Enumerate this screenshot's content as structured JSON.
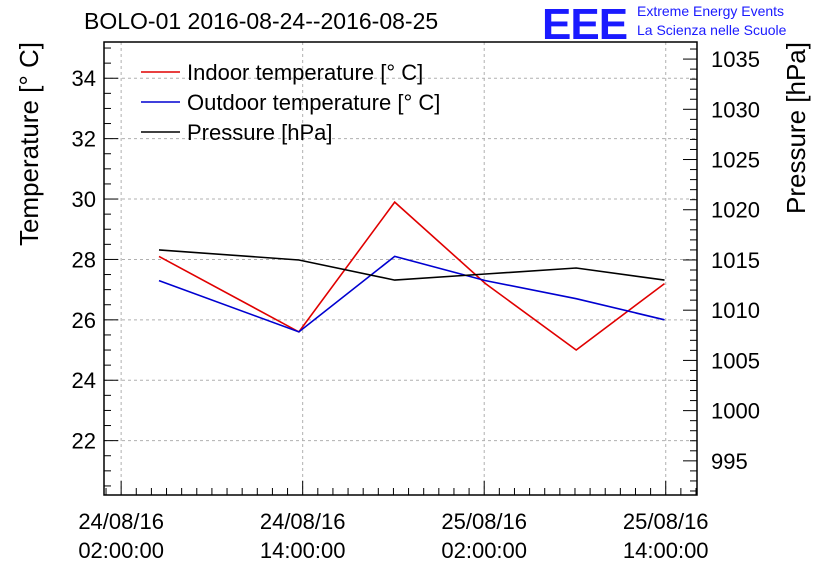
{
  "header": {
    "title": "BOLO-01 2016-08-24--2016-08-25",
    "logo_text": "EEE",
    "logo_line1": "Extreme Energy Events",
    "logo_line2": "La Scienza nelle Scuole"
  },
  "colors": {
    "indoor": "#e00000",
    "outdoor": "#0000d0",
    "pressure": "#000000",
    "grid": "#b0b0b0",
    "logo": "#1a1aff"
  },
  "chart_data": {
    "type": "line",
    "title": "BOLO-01 2016-08-24--2016-08-25",
    "ylabel": "Temperature [° C]",
    "y2label": "Pressure [hPa]",
    "ylim": [
      20.2,
      35.2
    ],
    "y2lim": [
      991.6,
      1036.7
    ],
    "xlim": [
      "2016-08-24 00:52:00",
      "2016-08-25 16:04:00"
    ],
    "x_ticks": [
      {
        "x": "2016-08-24 02:00:00",
        "date": "24/08/16",
        "time": "02:00:00"
      },
      {
        "x": "2016-08-24 14:00:00",
        "date": "24/08/16",
        "time": "14:00:00"
      },
      {
        "x": "2016-08-25 02:00:00",
        "date": "25/08/16",
        "time": "02:00:00"
      },
      {
        "x": "2016-08-25 14:00:00",
        "date": "25/08/16",
        "time": "14:00:00"
      }
    ],
    "y_ticks": [
      22,
      24,
      26,
      28,
      30,
      32,
      34
    ],
    "y2_ticks": [
      995,
      1000,
      1005,
      1010,
      1015,
      1020,
      1025,
      1030,
      1035
    ],
    "grid": true,
    "legend_position": "top-left",
    "series": [
      {
        "name": "Indoor temperature [° C]",
        "axis": "left",
        "x": [
          "2016-08-24 04:30:00",
          "2016-08-24 13:45:00",
          "2016-08-24 20:05:00",
          "2016-08-25 02:05:00",
          "2016-08-25 08:05:00",
          "2016-08-25 13:55:00"
        ],
        "y": [
          28.1,
          25.6,
          29.9,
          27.2,
          25.0,
          27.2
        ]
      },
      {
        "name": "Outdoor temperature [° C]",
        "axis": "left",
        "x": [
          "2016-08-24 04:30:00",
          "2016-08-24 13:45:00",
          "2016-08-24 20:05:00",
          "2016-08-25 02:05:00",
          "2016-08-25 08:05:00",
          "2016-08-25 13:55:00"
        ],
        "y": [
          27.3,
          25.6,
          28.1,
          27.3,
          26.7,
          26.0
        ]
      },
      {
        "name": "Pressure [hPa]",
        "axis": "right",
        "x": [
          "2016-08-24 04:30:00",
          "2016-08-24 13:45:00",
          "2016-08-24 20:05:00",
          "2016-08-25 02:05:00",
          "2016-08-25 08:05:00",
          "2016-08-25 13:55:00"
        ],
        "y": [
          1016.0,
          1015.0,
          1013.0,
          1013.6,
          1014.2,
          1013.0
        ]
      }
    ]
  }
}
